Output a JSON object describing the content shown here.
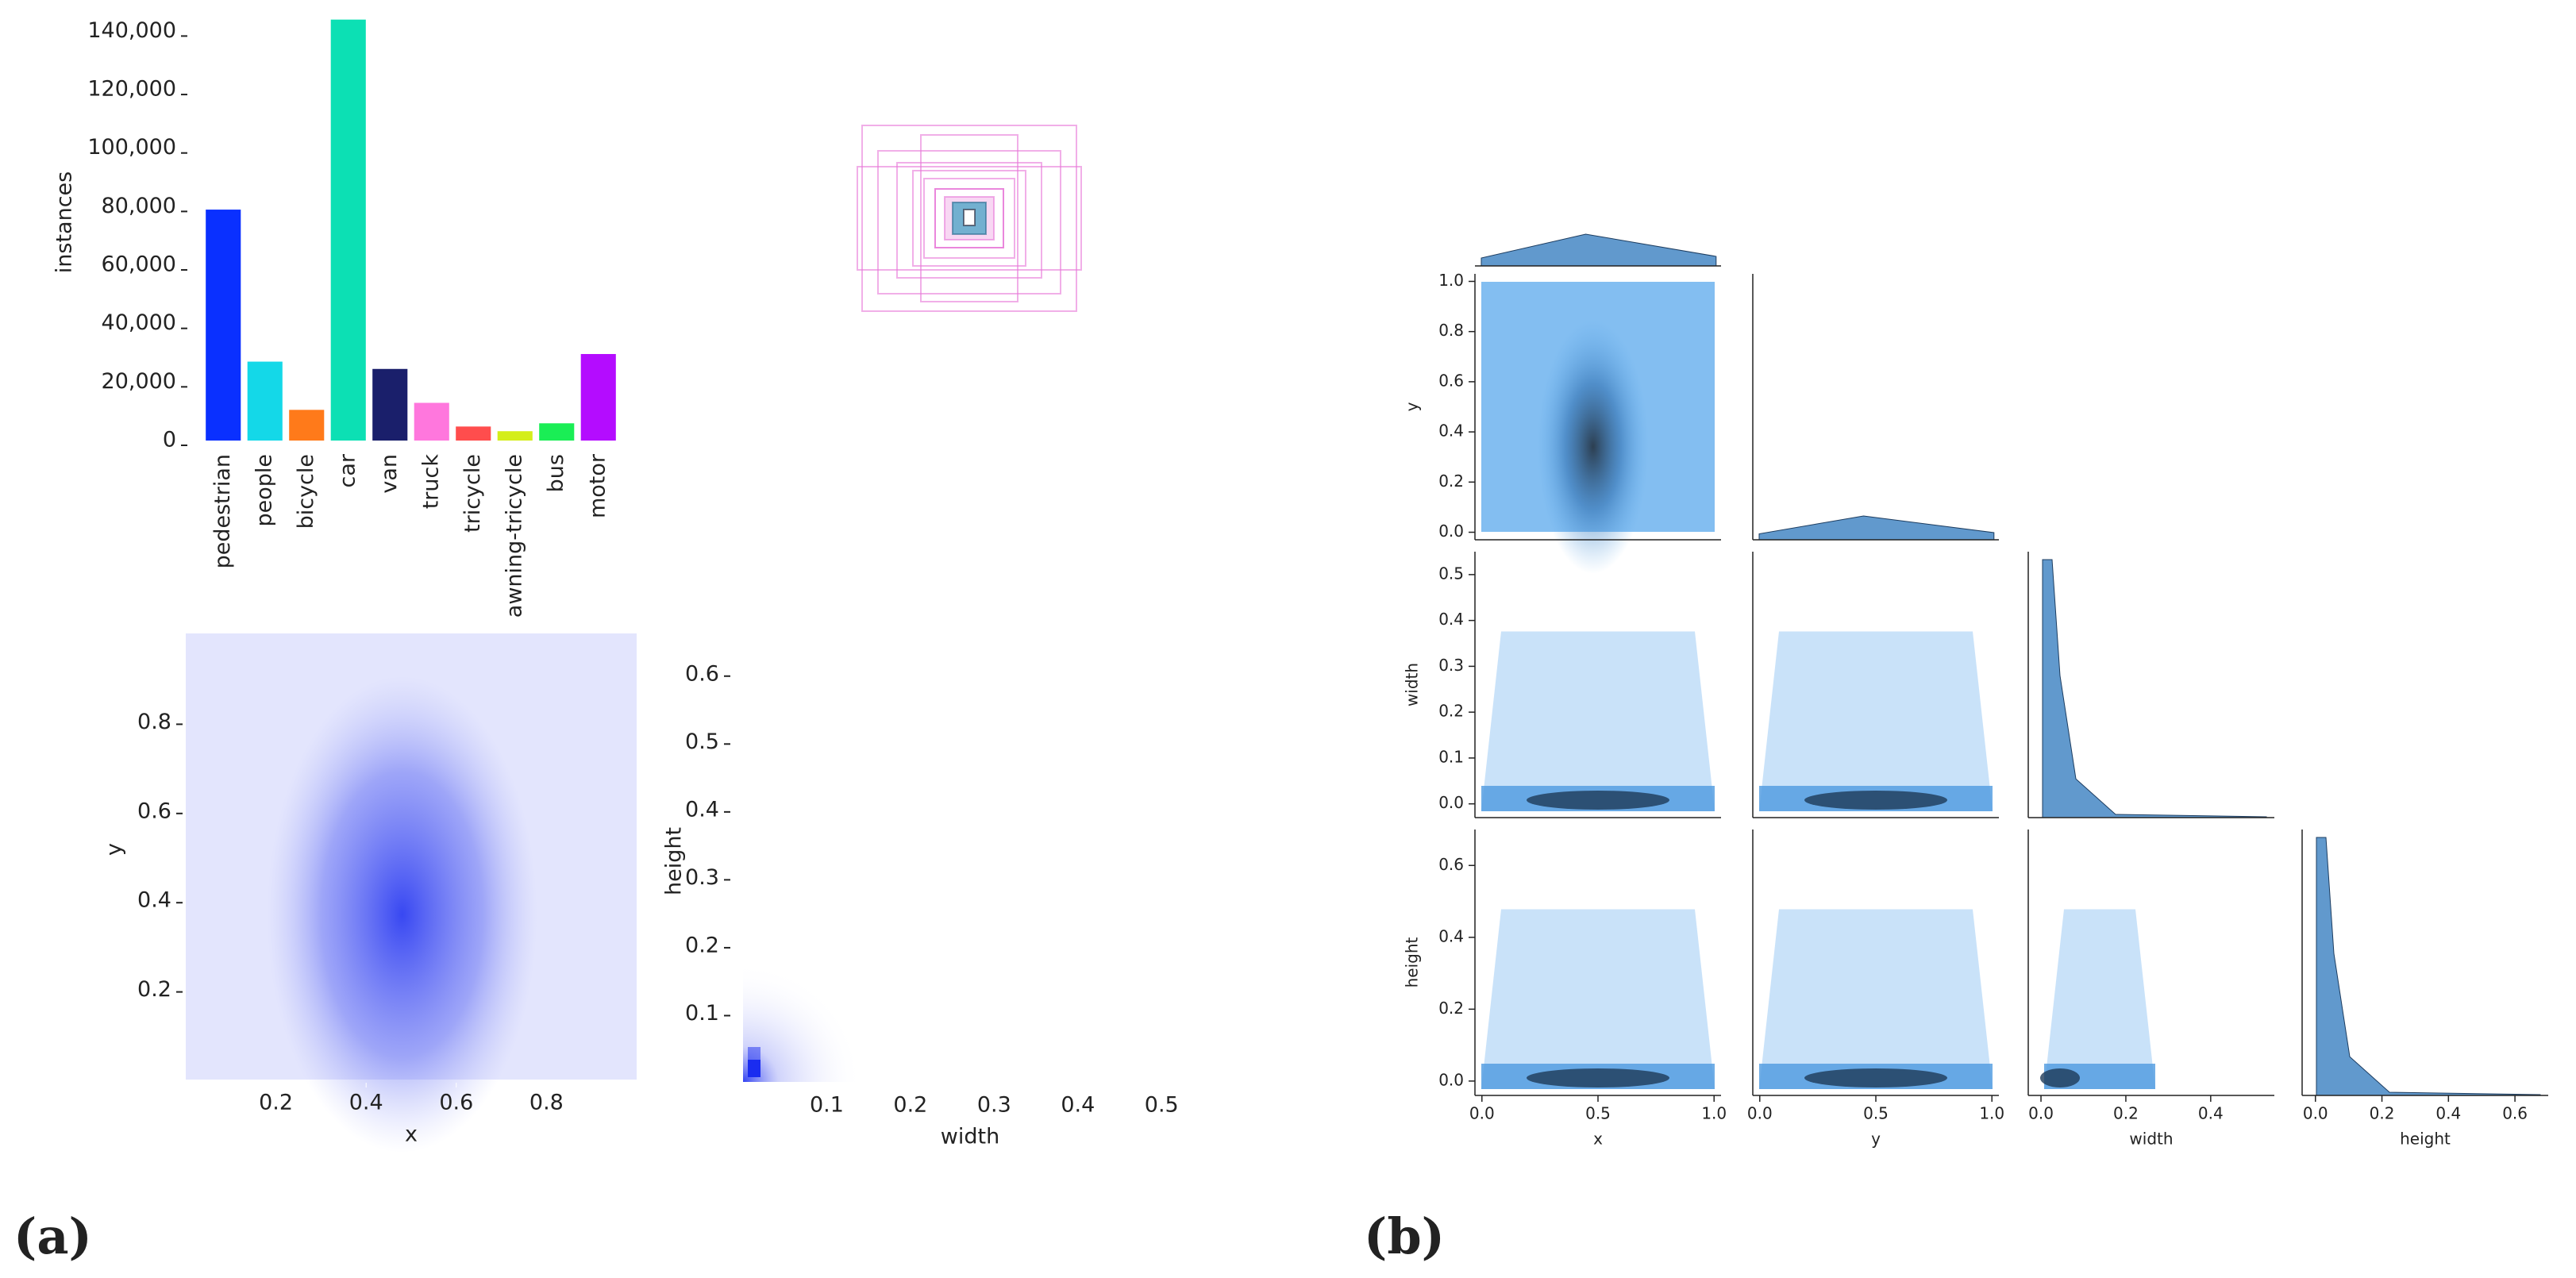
{
  "panels": [
    "(a)",
    "(b)"
  ],
  "chart_data": [
    {
      "type": "bar",
      "ylabel": "instances",
      "categories": [
        "pedestrian",
        "people",
        "bicycle",
        "car",
        "van",
        "truck",
        "tricycle",
        "awning-tricycle",
        "bus",
        "motor"
      ],
      "values": [
        79000,
        27000,
        10500,
        144000,
        24500,
        12900,
        4800,
        3200,
        5900,
        29600
      ],
      "colors": [
        "#0a30ff",
        "#14d8e8",
        "#ff7a1a",
        "#0ce0b4",
        "#1a1f6b",
        "#ff77dd",
        "#ff4d4d",
        "#d4ee1a",
        "#1aee55",
        "#b40cff"
      ],
      "ylim": [
        0,
        145000
      ],
      "yticks": [
        0,
        {
          "value": 20000,
          "label": "20,000"
        },
        {
          "value": 40000,
          "label": "40,000"
        },
        {
          "value": 60000,
          "label": "60,000"
        },
        {
          "value": 80000,
          "label": "80,000"
        },
        {
          "value": 100000,
          "label": "100,000"
        },
        {
          "value": 120000,
          "label": "120,000"
        },
        {
          "value": 140000,
          "label": "140,000"
        }
      ]
    },
    {
      "type": "heatmap",
      "xlabel": "x",
      "ylabel": "y",
      "xlim": [
        0,
        1
      ],
      "ylim": [
        0,
        1
      ],
      "xticks": [
        0.2,
        0.4,
        0.6,
        0.8
      ],
      "yticks": [
        0.2,
        0.4,
        0.6,
        0.8
      ],
      "color": "#1a2cf0"
    },
    {
      "type": "heatmap",
      "xlabel": "width",
      "ylabel": "height",
      "xlim": [
        0,
        0.55
      ],
      "ylim": [
        0,
        0.65
      ],
      "xticks": [
        0.1,
        0.2,
        0.3,
        0.4,
        0.5
      ],
      "yticks": [
        0.1,
        0.2,
        0.3,
        0.4,
        0.5,
        0.6
      ],
      "color": "#1a2cf0"
    },
    {
      "type": "pairplot",
      "color": "#3a7fc0",
      "variables": [
        {
          "name": "x",
          "lim": [
            -0.03,
            1.03
          ],
          "xticks": [
            {
              "value": 0,
              "label": "0.0"
            },
            0.5,
            {
              "value": 1,
              "label": "1.0"
            }
          ]
        },
        {
          "name": "y",
          "lim": [
            -0.03,
            1.03
          ],
          "xticks": [
            {
              "value": 0,
              "label": "0.0"
            },
            0.5,
            {
              "value": 1,
              "label": "1.0"
            }
          ],
          "yticks": [
            {
              "value": 0,
              "label": "0.0"
            },
            0.2,
            0.4,
            0.6,
            0.8,
            {
              "value": 1,
              "label": "1.0"
            }
          ]
        },
        {
          "name": "width",
          "lim": [
            -0.03,
            0.55
          ],
          "xticks": [
            {
              "value": 0,
              "label": "0.0"
            },
            0.2,
            0.4
          ],
          "yticks": [
            {
              "value": 0,
              "label": "0.0"
            },
            0.1,
            0.2,
            0.3,
            0.4,
            0.5
          ]
        },
        {
          "name": "height",
          "lim": [
            -0.04,
            0.7
          ],
          "xticks": [
            {
              "value": 0,
              "label": "0.0"
            },
            0.2,
            0.4,
            0.6
          ],
          "yticks": [
            {
              "value": 0,
              "label": "0.0"
            },
            0.2,
            0.4,
            0.6
          ]
        }
      ]
    }
  ]
}
